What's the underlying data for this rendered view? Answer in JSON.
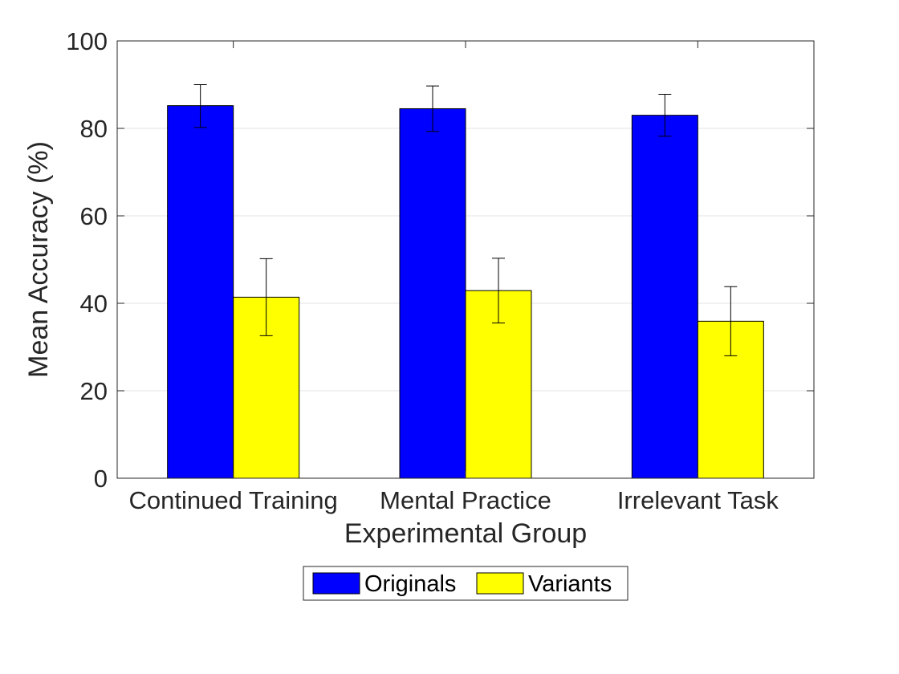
{
  "chart_data": {
    "type": "bar",
    "title": "",
    "xlabel": "Experimental Group",
    "ylabel": "Mean Accuracy (%)",
    "categories": [
      "Continued Training",
      "Mental Practice",
      "Irrelevant Task"
    ],
    "ylim": [
      0,
      100
    ],
    "yticks": [
      0,
      20,
      40,
      60,
      80,
      100
    ],
    "ytick_labels": [
      "0",
      "20",
      "40",
      "60",
      "80",
      "100"
    ],
    "grid": true,
    "legend_position": "bottom-center",
    "series": [
      {
        "name": "Originals",
        "color": "#0000ff",
        "values": [
          85.2,
          84.5,
          83.0
        ],
        "error_low": [
          80.2,
          79.3,
          78.2
        ],
        "error_high": [
          90.0,
          89.7,
          87.8
        ]
      },
      {
        "name": "Variants",
        "color": "#ffff00",
        "values": [
          41.4,
          42.9,
          35.9
        ],
        "error_low": [
          32.6,
          35.5,
          28.0
        ],
        "error_high": [
          50.2,
          50.3,
          43.8
        ]
      }
    ]
  }
}
